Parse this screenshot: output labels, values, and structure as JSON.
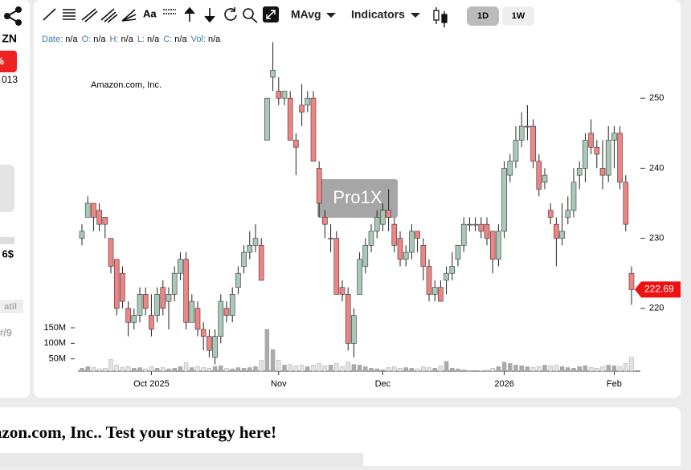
{
  "sidebar": {
    "ticker": "ZN",
    "change": "%",
    "date": "013",
    "price": "6$",
    "tab": "atil",
    "rank": "#/9"
  },
  "toolbar": {
    "text_tool": "Aa",
    "mavg": "MAvg",
    "indicators": "Indicators",
    "ranges": [
      "1D",
      "1W"
    ]
  },
  "info": [
    {
      "label": "Date:",
      "value": "n/a"
    },
    {
      "label": "O:",
      "value": "n/a"
    },
    {
      "label": "H:",
      "value": "n/a"
    },
    {
      "label": "L:",
      "value": "n/a"
    },
    {
      "label": "C:",
      "value": "n/a"
    },
    {
      "label": "Vol:",
      "value": "n/a"
    }
  ],
  "watermark": "Pro1X",
  "chart_data": {
    "type": "candlestick",
    "title": "Amazon.com, Inc.",
    "categories": [
      null,
      null,
      null,
      null,
      null,
      null,
      null,
      null,
      null,
      null,
      null,
      null,
      "Oct 2025",
      null,
      null,
      null,
      null,
      null,
      null,
      null,
      null,
      null,
      null,
      null,
      null,
      null,
      null,
      null,
      null,
      null,
      null,
      null,
      null,
      null,
      "Nov",
      null,
      null,
      null,
      null,
      null,
      null,
      null,
      null,
      null,
      null,
      null,
      null,
      null,
      null,
      null,
      null,
      null,
      "Dec",
      null,
      null,
      null,
      null,
      null,
      null,
      null,
      null,
      null,
      null,
      null,
      null,
      null,
      null,
      null,
      null,
      null,
      null,
      null,
      null,
      "2026",
      null,
      null,
      null,
      null,
      null,
      null,
      null,
      null,
      null,
      null,
      null,
      null,
      null,
      null,
      null,
      null,
      null,
      null,
      "Feb",
      null,
      null,
      null
    ],
    "open": [
      230,
      233,
      235,
      234,
      233,
      230,
      227,
      225,
      220,
      218,
      219,
      222,
      219,
      219,
      223,
      221,
      222,
      225,
      227,
      218,
      220,
      217,
      216,
      213,
      216,
      220,
      219,
      223,
      226,
      228,
      229,
      229,
      244,
      253,
      251,
      250,
      250,
      244,
      249,
      249,
      250,
      240,
      233,
      230,
      230,
      223,
      222,
      215,
      222,
      226,
      229,
      231,
      232,
      234,
      232,
      230,
      227,
      228,
      231,
      229,
      226,
      222,
      223,
      224,
      225,
      227,
      229,
      232,
      232,
      232,
      232,
      231,
      227,
      231,
      239,
      241,
      244,
      246,
      246,
      241,
      238,
      234,
      232,
      230,
      233,
      234,
      239,
      240,
      245,
      243,
      240,
      239,
      244,
      245,
      238,
      225
    ],
    "high": [
      232,
      236,
      235,
      235,
      233,
      230,
      227,
      226,
      221,
      220,
      223,
      223,
      222,
      223,
      224,
      223,
      226,
      228,
      228,
      222,
      221,
      218,
      217,
      217,
      222,
      221,
      223,
      226,
      229,
      231,
      232,
      230,
      250,
      258,
      253,
      251,
      251,
      245,
      252,
      251,
      251,
      241,
      234,
      232,
      231,
      224,
      223,
      220,
      228,
      230,
      232,
      234,
      235,
      237,
      233,
      231,
      229,
      232,
      231,
      230,
      227,
      224,
      224,
      226,
      228,
      229,
      233,
      233,
      233,
      233,
      233,
      231,
      232,
      241,
      242,
      246,
      248,
      249,
      247,
      242,
      240,
      235,
      233,
      235,
      236,
      240,
      241,
      245,
      247,
      244,
      244,
      246,
      246,
      246,
      239,
      226
    ],
    "low": [
      229,
      233,
      231,
      231,
      230,
      225,
      219,
      220,
      216,
      217,
      218,
      219,
      216,
      218,
      219,
      217,
      221,
      224,
      217,
      218,
      216,
      214,
      213,
      212,
      215,
      218,
      218,
      222,
      225,
      227,
      228,
      224,
      244,
      251,
      249,
      249,
      244,
      239,
      246,
      248,
      241,
      233,
      230,
      228,
      222,
      221,
      214,
      213,
      222,
      225,
      228,
      230,
      231,
      231,
      228,
      226,
      226,
      227,
      228,
      224,
      221,
      221,
      221,
      222,
      224,
      226,
      228,
      231,
      231,
      230,
      229,
      225,
      226,
      230,
      238,
      240,
      243,
      244,
      240,
      236,
      237,
      232,
      226,
      229,
      232,
      233,
      237,
      238,
      242,
      240,
      237,
      238,
      240,
      237,
      231,
      220.5
    ],
    "close": [
      231,
      235,
      233,
      232,
      232,
      226,
      220,
      221,
      218,
      219,
      222,
      220,
      217,
      222,
      220,
      222,
      225,
      227,
      218,
      221,
      217,
      216,
      214,
      216,
      221,
      219,
      222,
      225,
      228,
      229,
      230,
      224,
      250,
      254,
      250,
      251,
      244,
      243,
      248,
      250,
      241,
      235,
      232,
      230,
      222,
      222,
      215,
      219,
      227,
      229,
      231,
      233,
      234,
      233,
      229,
      227,
      228,
      231,
      230,
      226,
      222,
      223,
      221,
      225,
      226,
      229,
      232,
      232,
      232,
      231,
      230,
      227,
      231,
      240,
      241,
      244,
      246,
      246,
      241,
      237,
      239,
      233,
      230,
      231,
      234,
      238,
      240,
      244,
      243,
      242,
      239,
      244,
      245,
      238,
      232,
      222.69
    ],
    "volume": [
      20000000,
      25000000,
      22000000,
      18000000,
      20000000,
      48000000,
      30000000,
      22000000,
      25000000,
      20000000,
      22000000,
      18000000,
      25000000,
      20000000,
      22000000,
      18000000,
      20000000,
      25000000,
      38000000,
      22000000,
      25000000,
      22000000,
      20000000,
      25000000,
      28000000,
      20000000,
      18000000,
      22000000,
      20000000,
      22000000,
      25000000,
      45000000,
      145000000,
      80000000,
      45000000,
      30000000,
      32000000,
      28000000,
      30000000,
      25000000,
      30000000,
      35000000,
      28000000,
      30000000,
      35000000,
      25000000,
      40000000,
      32000000,
      30000000,
      25000000,
      20000000,
      18000000,
      15000000,
      22000000,
      25000000,
      20000000,
      22000000,
      20000000,
      18000000,
      25000000,
      22000000,
      20000000,
      28000000,
      42000000,
      20000000,
      18000000,
      15000000,
      12000000,
      10000000,
      12000000,
      15000000,
      20000000,
      25000000,
      40000000,
      35000000,
      30000000,
      28000000,
      25000000,
      22000000,
      25000000,
      30000000,
      28000000,
      30000000,
      25000000,
      22000000,
      20000000,
      25000000,
      28000000,
      22000000,
      20000000,
      25000000,
      30000000,
      28000000,
      25000000,
      35000000,
      55000000
    ],
    "up_color": "#a9c9b8",
    "down_color": "#f08484",
    "ylim": [
      210,
      260
    ],
    "yticks": [
      220,
      230,
      240,
      250
    ],
    "vlim": [
      0,
      150000000
    ],
    "vticks": [
      {
        "value": 50000000,
        "label": "50M"
      },
      {
        "value": 100000000,
        "label": "100M"
      },
      {
        "value": 150000000,
        "label": "150M"
      }
    ]
  },
  "footer": "azon.com, Inc.. Test your strategy here!"
}
